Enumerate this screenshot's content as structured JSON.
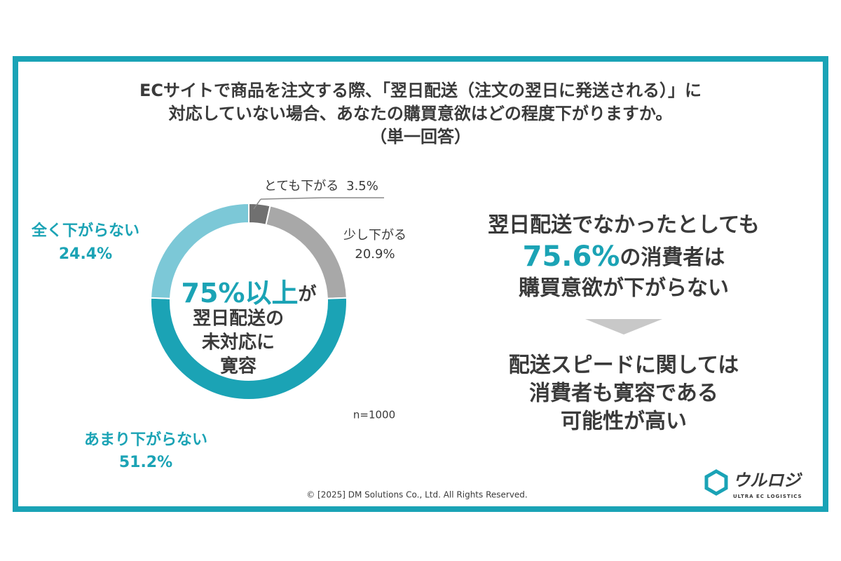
{
  "chart_data": {
    "type": "pie",
    "donut": true,
    "title_lines": [
      "ECサイトで商品を注文する際、「翌日配送（注文の翌日に発送される）」に",
      "対応していない場合、あなたの購買意欲はどの程度下がりますか。",
      "（単一回答）"
    ],
    "categories": [
      "とても下がる",
      "少し下がる",
      "あまり下がらない",
      "全く下がらない"
    ],
    "values": [
      3.5,
      20.9,
      51.2,
      24.4
    ],
    "value_labels": [
      "3.5%",
      "20.9%",
      "51.2%",
      "24.4%"
    ],
    "colors": [
      "#707070",
      "#a8a8a8",
      "#1ba3b5",
      "#7cc8d7"
    ],
    "center_text": {
      "highlight": "75%以上",
      "suffix": "が",
      "lines": [
        "翌日配送の",
        "未対応に",
        "寛容"
      ]
    },
    "note": "n=1000"
  },
  "summary": {
    "line1": "翌日配送でなかったとしても",
    "highlight": "75.6%",
    "line2_suffix": "の消費者は",
    "line3": "購買意欲が下がらない",
    "conclusion": [
      "配送スピードに関しては",
      "消費者も寛容である",
      "可能性が高い"
    ]
  },
  "footer": {
    "copyright": "© [2025] DM Solutions Co., Ltd. All Rights Reserved.",
    "logo": "ウルロジ",
    "logo_sub": "ULTRA EC LOGISTICS"
  }
}
